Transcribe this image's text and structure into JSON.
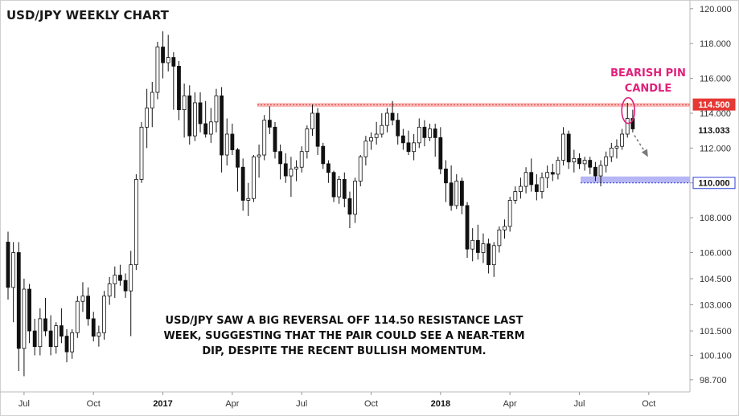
{
  "chart_data": {
    "type": "candlestick",
    "title": "USD/JPY WEEKLY CHART",
    "xlabel": "",
    "ylabel": "",
    "ylim": [
      98.0,
      120.5
    ],
    "grid": false,
    "y_ticks": [
      "120.000",
      "118.000",
      "116.000",
      "114.000",
      "112.000",
      "110.000",
      "108.000",
      "106.000",
      "104.500",
      "103.000",
      "101.500",
      "100.100",
      "98.700"
    ],
    "x_ticks": [
      "Jul",
      "Oct",
      "2017",
      "Apr",
      "Jul",
      "Oct",
      "2018",
      "Apr",
      "Jul",
      "Oct"
    ],
    "x_tick_weeks": [
      3,
      16,
      29,
      42,
      55,
      68,
      81,
      94,
      107,
      120
    ],
    "current_price_label": "113.033",
    "resistance": {
      "value": 114.5,
      "label": "114.500",
      "color": "#e53935"
    },
    "support": {
      "value": 110.0,
      "label": "110.000",
      "color": "#2f3fd6"
    },
    "annotation_title": [
      "BEARISH PIN",
      "CANDLE"
    ],
    "annotation_note": [
      "USD/JPY SAW A BIG REVERSAL OFF 114.50 RESISTANCE LAST",
      "WEEK, SUGGESTING THAT THE PAIR COULD SEE A NEAR-TERM",
      "DIP, DESPITE THE RECENT BULLISH MOMENTUM."
    ],
    "candles": [
      [
        106.6,
        107.2,
        103.3,
        104.0
      ],
      [
        104.0,
        106.6,
        102.0,
        106.0
      ],
      [
        106.0,
        106.6,
        99.2,
        100.5
      ],
      [
        100.5,
        104.5,
        98.9,
        103.9
      ],
      [
        103.9,
        104.2,
        100.8,
        101.5
      ],
      [
        101.5,
        102.2,
        100.1,
        100.6
      ],
      [
        100.6,
        102.8,
        100.1,
        102.2
      ],
      [
        102.2,
        103.4,
        101.2,
        101.5
      ],
      [
        101.5,
        102.4,
        100.1,
        100.6
      ],
      [
        100.6,
        102.0,
        100.2,
        101.8
      ],
      [
        101.8,
        102.8,
        100.8,
        101.2
      ],
      [
        101.2,
        101.6,
        99.7,
        100.3
      ],
      [
        100.3,
        101.6,
        99.9,
        101.4
      ],
      [
        101.4,
        103.5,
        101.1,
        103.2
      ],
      [
        103.2,
        104.3,
        102.6,
        103.5
      ],
      [
        103.5,
        104.0,
        101.8,
        102.2
      ],
      [
        102.2,
        102.6,
        100.9,
        101.2
      ],
      [
        101.2,
        101.8,
        100.6,
        101.4
      ],
      [
        101.4,
        103.8,
        101.0,
        103.5
      ],
      [
        103.5,
        104.6,
        103.0,
        104.2
      ],
      [
        104.2,
        105.2,
        103.4,
        104.7
      ],
      [
        104.7,
        105.3,
        104.1,
        104.4
      ],
      [
        104.4,
        104.8,
        103.4,
        103.8
      ],
      [
        103.8,
        106.1,
        101.2,
        105.3
      ],
      [
        105.3,
        110.5,
        105.0,
        110.2
      ],
      [
        110.2,
        113.5,
        110.0,
        113.2
      ],
      [
        113.2,
        115.4,
        112.0,
        114.3
      ],
      [
        114.3,
        115.8,
        113.2,
        115.2
      ],
      [
        115.2,
        118.1,
        114.8,
        117.8
      ],
      [
        117.8,
        118.7,
        116.0,
        116.9
      ],
      [
        116.9,
        118.5,
        116.4,
        117.2
      ],
      [
        117.2,
        117.5,
        114.2,
        116.7
      ],
      [
        116.7,
        117.0,
        113.6,
        114.2
      ],
      [
        114.2,
        115.7,
        112.6,
        115.0
      ],
      [
        115.0,
        115.6,
        112.2,
        112.7
      ],
      [
        112.7,
        115.2,
        112.4,
        114.6
      ],
      [
        114.6,
        115.2,
        112.9,
        113.4
      ],
      [
        113.4,
        114.7,
        112.6,
        112.8
      ],
      [
        112.8,
        114.3,
        112.3,
        113.5
      ],
      [
        113.5,
        115.4,
        112.9,
        115.0
      ],
      [
        115.0,
        115.5,
        110.6,
        111.6
      ],
      [
        111.6,
        113.7,
        111.0,
        112.8
      ],
      [
        112.8,
        113.4,
        111.6,
        111.9
      ],
      [
        111.9,
        112.0,
        109.5,
        110.9
      ],
      [
        110.9,
        111.4,
        108.4,
        109.0
      ],
      [
        109.0,
        110.0,
        108.1,
        109.1
      ],
      [
        109.1,
        111.6,
        108.9,
        111.5
      ],
      [
        111.5,
        112.2,
        110.3,
        111.6
      ],
      [
        111.6,
        113.9,
        111.3,
        113.6
      ],
      [
        113.6,
        114.4,
        112.8,
        113.2
      ],
      [
        113.2,
        113.5,
        111.4,
        111.8
      ],
      [
        111.8,
        112.2,
        110.2,
        111.1
      ],
      [
        111.1,
        111.7,
        110.0,
        110.4
      ],
      [
        110.4,
        111.5,
        109.2,
        110.8
      ],
      [
        110.8,
        111.3,
        110.1,
        110.9
      ],
      [
        110.9,
        112.1,
        110.6,
        111.8
      ],
      [
        111.8,
        113.3,
        111.4,
        113.1
      ],
      [
        113.1,
        114.5,
        112.7,
        114.0
      ],
      [
        114.0,
        114.3,
        111.6,
        112.1
      ],
      [
        112.1,
        112.3,
        110.8,
        111.1
      ],
      [
        111.1,
        111.3,
        110.0,
        110.6
      ],
      [
        110.6,
        110.7,
        108.9,
        109.2
      ],
      [
        109.2,
        110.4,
        108.8,
        110.2
      ],
      [
        110.2,
        110.6,
        108.6,
        109.1
      ],
      [
        109.1,
        109.5,
        107.4,
        108.2
      ],
      [
        108.2,
        110.3,
        107.7,
        110.1
      ],
      [
        110.1,
        111.6,
        109.8,
        111.5
      ],
      [
        111.5,
        112.7,
        111.0,
        112.4
      ],
      [
        112.4,
        112.9,
        111.9,
        112.6
      ],
      [
        112.6,
        113.5,
        112.2,
        112.8
      ],
      [
        112.8,
        114.0,
        112.6,
        113.3
      ],
      [
        113.3,
        114.3,
        112.9,
        114.0
      ],
      [
        114.0,
        114.7,
        113.3,
        113.6
      ],
      [
        113.6,
        114.0,
        112.2,
        112.7
      ],
      [
        112.7,
        113.1,
        111.9,
        112.3
      ],
      [
        112.3,
        113.0,
        111.6,
        111.8
      ],
      [
        111.8,
        112.8,
        111.3,
        112.3
      ],
      [
        112.3,
        113.7,
        112.0,
        113.2
      ],
      [
        113.2,
        113.6,
        112.1,
        112.6
      ],
      [
        112.6,
        113.4,
        112.4,
        113.1
      ],
      [
        113.1,
        113.4,
        111.5,
        112.6
      ],
      [
        112.6,
        113.2,
        110.5,
        110.8
      ],
      [
        110.8,
        111.3,
        108.9,
        110.0
      ],
      [
        110.0,
        111.0,
        108.4,
        108.7
      ],
      [
        108.7,
        110.5,
        108.5,
        110.1
      ],
      [
        110.1,
        110.3,
        108.2,
        108.7
      ],
      [
        108.7,
        108.9,
        105.7,
        106.2
      ],
      [
        106.2,
        107.4,
        105.5,
        106.7
      ],
      [
        106.7,
        107.6,
        105.6,
        106.0
      ],
      [
        106.0,
        107.1,
        105.4,
        106.5
      ],
      [
        106.5,
        106.8,
        104.8,
        105.3
      ],
      [
        105.3,
        106.6,
        104.6,
        106.4
      ],
      [
        106.4,
        107.5,
        106.0,
        107.3
      ],
      [
        107.3,
        107.9,
        106.8,
        107.5
      ],
      [
        107.5,
        109.2,
        107.2,
        109.0
      ],
      [
        109.0,
        109.8,
        108.8,
        109.5
      ],
      [
        109.5,
        110.3,
        109.1,
        109.8
      ],
      [
        109.8,
        110.9,
        109.4,
        110.6
      ],
      [
        110.6,
        111.4,
        109.5,
        109.9
      ],
      [
        109.9,
        110.5,
        109.0,
        109.5
      ],
      [
        109.5,
        110.6,
        109.1,
        110.3
      ],
      [
        110.3,
        111.0,
        109.7,
        110.6
      ],
      [
        110.6,
        111.1,
        110.1,
        110.5
      ],
      [
        110.5,
        111.5,
        110.2,
        111.3
      ],
      [
        111.3,
        113.2,
        111.0,
        112.8
      ],
      [
        112.8,
        113.0,
        110.8,
        111.2
      ],
      [
        111.2,
        111.9,
        110.6,
        111.4
      ],
      [
        111.4,
        111.7,
        110.8,
        111.1
      ],
      [
        111.1,
        111.5,
        110.7,
        111.3
      ],
      [
        111.3,
        111.5,
        110.5,
        110.9
      ],
      [
        110.9,
        111.2,
        110.1,
        110.4
      ],
      [
        110.4,
        111.3,
        109.8,
        111.0
      ],
      [
        111.0,
        111.8,
        110.6,
        111.5
      ],
      [
        111.5,
        112.3,
        111.2,
        112.0
      ],
      [
        112.0,
        112.5,
        111.4,
        112.1
      ],
      [
        112.1,
        113.1,
        111.9,
        112.8
      ],
      [
        112.8,
        114.6,
        112.6,
        113.7
      ],
      [
        113.7,
        114.2,
        112.9,
        113.1
      ]
    ]
  }
}
